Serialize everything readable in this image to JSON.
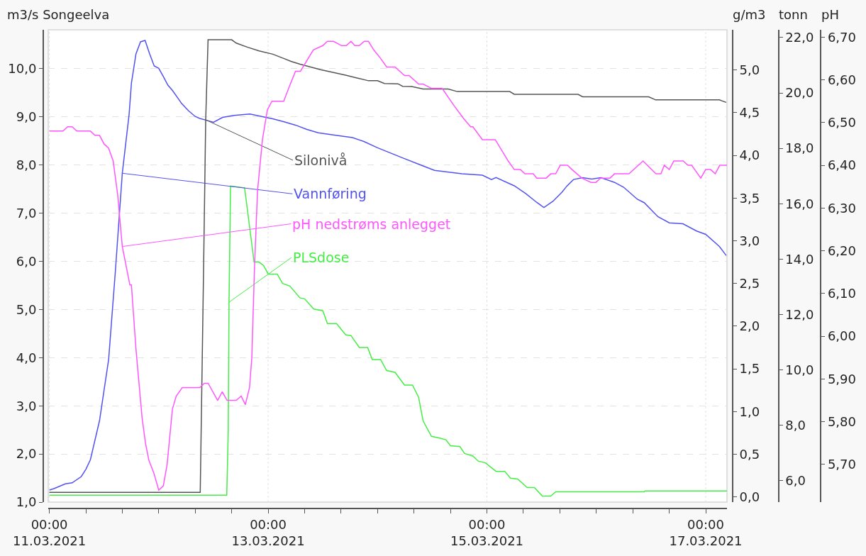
{
  "chart_data": [
    {
      "type": "line",
      "ylabel": "m3/s Songeelva",
      "y2label": "g/m3",
      "y3label": "tonn",
      "grid": true,
      "xlim": [
        "2021-03-10T23:45",
        "2021-03-17T04:40"
      ],
      "xticks": [
        {
          "value": "2021-03-11T00:00",
          "label": "00:00\n11.03.2021"
        },
        {
          "value": "2021-03-11T08:00",
          "label": null
        },
        {
          "value": "2021-03-11T16:00",
          "label": null
        },
        {
          "value": "2021-03-12T00:00",
          "label": null
        },
        {
          "value": "2021-03-12T08:00",
          "label": null
        },
        {
          "value": "2021-03-12T16:00",
          "label": null
        },
        {
          "value": "2021-03-13T00:00",
          "label": "00:00\n13.03.2021"
        },
        {
          "value": "2021-03-13T08:00",
          "label": null
        },
        {
          "value": "2021-03-13T16:00",
          "label": null
        },
        {
          "value": "2021-03-14T00:00",
          "label": null
        },
        {
          "value": "2021-03-14T08:00",
          "label": null
        },
        {
          "value": "2021-03-14T16:00",
          "label": null
        },
        {
          "value": "2021-03-15T00:00",
          "label": "00:00\n15.03.2021"
        },
        {
          "value": "2021-03-15T08:00",
          "label": null
        },
        {
          "value": "2021-03-15T16:00",
          "label": null
        },
        {
          "value": "2021-03-16T00:00",
          "label": null
        },
        {
          "value": "2021-03-16T08:00",
          "label": null
        },
        {
          "value": "2021-03-16T16:00",
          "label": null
        },
        {
          "value": "2021-03-17T00:00",
          "label": "00:00\n17.03.2021"
        }
      ],
      "ylim": [
        1.0,
        10.81
      ],
      "yticks": [
        {
          "value": 1,
          "label": "1,0"
        },
        {
          "value": 2,
          "label": "2,0"
        },
        {
          "value": 3,
          "label": "3,0"
        },
        {
          "value": 4,
          "label": "4,0"
        },
        {
          "value": 5,
          "label": "5,0"
        },
        {
          "value": 6,
          "label": "6,0"
        },
        {
          "value": 7,
          "label": "7,0"
        },
        {
          "value": 8,
          "label": "8,0"
        },
        {
          "value": 9,
          "label": "9,0"
        },
        {
          "value": 10,
          "label": "10,0"
        }
      ],
      "y2lim": [
        -0.06,
        5.47
      ],
      "y2ticks": [
        {
          "value": 0,
          "label": "0,0"
        },
        {
          "value": 0.5,
          "label": "0,5"
        },
        {
          "value": 1,
          "label": "1,0"
        },
        {
          "value": 1.5,
          "label": "1,5"
        },
        {
          "value": 2,
          "label": "2,0"
        },
        {
          "value": 2.5,
          "label": "2,5"
        },
        {
          "value": 3,
          "label": "3,0"
        },
        {
          "value": 3.5,
          "label": "3,5"
        },
        {
          "value": 4,
          "label": "4,0"
        },
        {
          "value": 4.5,
          "label": "4,5"
        },
        {
          "value": 5,
          "label": "5,0"
        }
      ],
      "y3lim": [
        5.23,
        22.28
      ],
      "y3ticks": [
        {
          "value": 6,
          "label": "6,0"
        },
        {
          "value": 8,
          "label": "8,0"
        },
        {
          "value": 10,
          "label": "10,0"
        },
        {
          "value": 12,
          "label": "12,0"
        },
        {
          "value": 14,
          "label": "14,0"
        },
        {
          "value": 16,
          "label": "16,0"
        },
        {
          "value": 18,
          "label": "18,0"
        },
        {
          "value": 20,
          "label": "20,0"
        },
        {
          "value": 22,
          "label": "22,0"
        }
      ],
      "series": [
        {
          "name": "Silonivå",
          "color": "#555555",
          "axis": "y3",
          "x": [
            "2021-03-11T00:00",
            "2021-03-12T09:06",
            "2021-03-12T09:50",
            "2021-03-12T10:18",
            "2021-03-12T10:49",
            "2021-03-12T16:00",
            "2021-03-12T17:00",
            "2021-03-12T19:30",
            "2021-03-12T22:00",
            "2021-03-13T01:00",
            "2021-03-13T03:30",
            "2021-03-13T05:00",
            "2021-03-13T07:00",
            "2021-03-13T11:30",
            "2021-03-13T14:00",
            "2021-03-13T17:00",
            "2021-03-13T19:30",
            "2021-03-13T22:00",
            "2021-03-14T00:00",
            "2021-03-14T01:30",
            "2021-03-14T04:30",
            "2021-03-14T05:30",
            "2021-03-14T07:30",
            "2021-03-14T10:00",
            "2021-03-14T15:30",
            "2021-03-14T17:30",
            "2021-03-15T05:00",
            "2021-03-15T06:00",
            "2021-03-15T20:00",
            "2021-03-15T21:00",
            "2021-03-16T11:30",
            "2021-03-16T13:00",
            "2021-03-17T03:00",
            "2021-03-17T04:30"
          ],
          "values": [
            5.58,
            5.58,
            13.63,
            19.03,
            21.92,
            21.92,
            21.8,
            21.65,
            21.52,
            21.4,
            21.24,
            21.14,
            21.04,
            20.84,
            20.75,
            20.64,
            20.54,
            20.44,
            20.44,
            20.34,
            20.33,
            20.24,
            20.23,
            20.14,
            20.14,
            20.05,
            20.05,
            19.95,
            19.95,
            19.86,
            19.86,
            19.75,
            19.75,
            19.66
          ]
        },
        {
          "name": "Vannføring",
          "color": "#5252f2",
          "x": [
            "2021-03-11T00:00",
            "2021-03-11T01:00",
            "2021-03-11T03:30",
            "2021-03-11T05:00",
            "2021-03-11T07:00",
            "2021-03-11T08:00",
            "2021-03-11T09:00",
            "2021-03-11T11:00",
            "2021-03-11T13:00",
            "2021-03-11T14:30",
            "2021-03-11T16:00",
            "2021-03-11T17:30",
            "2021-03-11T18:00",
            "2021-03-11T19:00",
            "2021-03-11T20:00",
            "2021-03-11T21:00",
            "2021-03-11T22:00",
            "2021-03-11T23:00",
            "2021-03-12T00:00",
            "2021-03-12T01:00",
            "2021-03-12T02:00",
            "2021-03-12T03:00",
            "2021-03-12T04:30",
            "2021-03-12T05:00",
            "2021-03-12T06:30",
            "2021-03-12T08:00",
            "2021-03-12T09:00",
            "2021-03-12T10:30",
            "2021-03-12T12:00",
            "2021-03-12T14:00",
            "2021-03-12T16:30",
            "2021-03-12T20:00",
            "2021-03-12T22:00",
            "2021-03-13T01:00",
            "2021-03-13T03:30",
            "2021-03-13T06:00",
            "2021-03-13T08:30",
            "2021-03-13T11:00",
            "2021-03-13T14:00",
            "2021-03-13T18:30",
            "2021-03-13T21:00",
            "2021-03-14T00:00",
            "2021-03-14T05:30",
            "2021-03-14T09:30",
            "2021-03-14T12:30",
            "2021-03-14T18:30",
            "2021-03-14T23:00",
            "2021-03-15T01:00",
            "2021-03-15T02:00",
            "2021-03-15T06:00",
            "2021-03-15T08:30",
            "2021-03-15T11:00",
            "2021-03-15T12:30",
            "2021-03-15T14:30",
            "2021-03-15T16:30",
            "2021-03-15T17:30",
            "2021-03-15T19:00",
            "2021-03-15T21:00",
            "2021-03-15T23:00",
            "2021-03-16T01:00",
            "2021-03-16T04:00",
            "2021-03-16T06:00",
            "2021-03-16T09:00",
            "2021-03-16T10:30",
            "2021-03-16T13:30",
            "2021-03-16T16:00",
            "2021-03-16T19:00",
            "2021-03-16T22:00",
            "2021-03-17T00:00",
            "2021-03-17T03:00",
            "2021-03-17T04:30"
          ],
          "values": [
            1.25,
            1.28,
            1.38,
            1.4,
            1.53,
            1.68,
            1.88,
            2.69,
            3.96,
            5.82,
            7.83,
            9.06,
            9.7,
            10.31,
            10.56,
            10.59,
            10.31,
            10.06,
            10.01,
            9.84,
            9.66,
            9.55,
            9.35,
            9.28,
            9.13,
            9.01,
            8.97,
            8.93,
            8.89,
            8.99,
            9.03,
            9.06,
            9.02,
            8.96,
            8.9,
            8.83,
            8.74,
            8.67,
            8.63,
            8.57,
            8.49,
            8.36,
            8.15,
            8.0,
            7.89,
            7.82,
            7.79,
            7.7,
            7.74,
            7.57,
            7.41,
            7.22,
            7.12,
            7.25,
            7.44,
            7.56,
            7.7,
            7.74,
            7.71,
            7.74,
            7.64,
            7.54,
            7.29,
            7.22,
            6.93,
            6.8,
            6.78,
            6.63,
            6.56,
            6.31,
            6.12
          ]
        },
        {
          "name": "PLSdose",
          "color": "#44ee44",
          "axis": "y2",
          "x": [
            "2021-03-11T00:00",
            "2021-03-12T14:55",
            "2021-03-12T15:15",
            "2021-03-12T15:25",
            "2021-03-12T15:45",
            "2021-03-12T18:50",
            "2021-03-12T20:55",
            "2021-03-12T22:00",
            "2021-03-12T23:00",
            "2021-03-13T00:00",
            "2021-03-13T02:00",
            "2021-03-13T03:10",
            "2021-03-13T04:45",
            "2021-03-13T07:00",
            "2021-03-13T08:00",
            "2021-03-13T10:00",
            "2021-03-13T12:00",
            "2021-03-13T13:00",
            "2021-03-13T15:00",
            "2021-03-13T17:00",
            "2021-03-13T18:10",
            "2021-03-13T20:00",
            "2021-03-13T21:50",
            "2021-03-13T22:50",
            "2021-03-14T00:40",
            "2021-03-14T02:00",
            "2021-03-14T03:50",
            "2021-03-14T05:55",
            "2021-03-14T07:40",
            "2021-03-14T09:00",
            "2021-03-14T10:00",
            "2021-03-14T11:50",
            "2021-03-14T13:40",
            "2021-03-14T15:00",
            "2021-03-14T16:00",
            "2021-03-14T18:05",
            "2021-03-14T19:05",
            "2021-03-14T20:55",
            "2021-03-14T22:05",
            "2021-03-14T23:40",
            "2021-03-15T02:00",
            "2021-03-15T03:55",
            "2021-03-15T05:10",
            "2021-03-15T06:45",
            "2021-03-15T08:50",
            "2021-03-15T10:25",
            "2021-03-15T12:10",
            "2021-03-15T14:00",
            "2021-03-15T15:05",
            "2021-03-16T10:30",
            "2021-03-16T10:40",
            "2021-03-17T04:40"
          ],
          "values": [
            0.02,
            0.02,
            0.78,
            2.28,
            3.64,
            3.62,
            2.75,
            2.75,
            2.71,
            2.61,
            2.61,
            2.5,
            2.47,
            2.33,
            2.32,
            2.2,
            2.18,
            2.03,
            2.03,
            1.9,
            1.89,
            1.75,
            1.75,
            1.61,
            1.61,
            1.48,
            1.46,
            1.31,
            1.31,
            1.17,
            0.89,
            0.71,
            0.69,
            0.67,
            0.6,
            0.59,
            0.51,
            0.48,
            0.42,
            0.4,
            0.3,
            0.3,
            0.22,
            0.21,
            0.11,
            0.11,
            0.01,
            0.01,
            0.06,
            0.06,
            0.07,
            0.07
          ]
        }
      ]
    },
    {
      "type": "line",
      "ylabel": "pH",
      "tick_labels": "y",
      "xlim": [
        "2021-03-10T23:45",
        "2021-03-17T04:40"
      ],
      "ylim": [
        5.612,
        6.717
      ],
      "yticks": [
        {
          "value": 5.7,
          "label": "5,70"
        },
        {
          "value": 5.8,
          "label": "5,80"
        },
        {
          "value": 5.9,
          "label": "5,90"
        },
        {
          "value": 6.0,
          "label": "6,00"
        },
        {
          "value": 6.1,
          "label": "6,10"
        },
        {
          "value": 6.2,
          "label": "6,20"
        },
        {
          "value": 6.3,
          "label": "6,30"
        },
        {
          "value": 6.4,
          "label": "6,40"
        },
        {
          "value": 6.5,
          "label": "6,50"
        },
        {
          "value": 6.6,
          "label": "6,60"
        },
        {
          "value": 6.7,
          "label": "6,70"
        }
      ],
      "series": [
        {
          "name": "pH nedstrøms anlegget",
          "color": "#ff55ff",
          "x": [
            "2021-03-11T00:00",
            "2021-03-11T03:00",
            "2021-03-11T04:00",
            "2021-03-11T05:00",
            "2021-03-11T06:00",
            "2021-03-11T09:00",
            "2021-03-11T10:00",
            "2021-03-11T11:00",
            "2021-03-11T12:00",
            "2021-03-11T13:00",
            "2021-03-11T14:00",
            "2021-03-11T15:00",
            "2021-03-11T16:00",
            "2021-03-11T17:40",
            "2021-03-11T18:00",
            "2021-03-11T19:00",
            "2021-03-11T20:20",
            "2021-03-11T21:05",
            "2021-03-11T21:50",
            "2021-03-11T22:55",
            "2021-03-12T00:00",
            "2021-03-12T01:00",
            "2021-03-12T01:50",
            "2021-03-12T03:00",
            "2021-03-12T03:50",
            "2021-03-12T05:10",
            "2021-03-12T09:00",
            "2021-03-12T10:00",
            "2021-03-12T10:50",
            "2021-03-12T12:55",
            "2021-03-12T13:55",
            "2021-03-12T15:00",
            "2021-03-12T17:00",
            "2021-03-12T18:05",
            "2021-03-12T19:00",
            "2021-03-12T19:55",
            "2021-03-12T20:25",
            "2021-03-12T21:00",
            "2021-03-12T21:40",
            "2021-03-12T22:45",
            "2021-03-12T23:50",
            "2021-03-13T00:50",
            "2021-03-13T02:10",
            "2021-03-13T02:55",
            "2021-03-13T03:25",
            "2021-03-13T04:30",
            "2021-03-13T06:00",
            "2021-03-13T07:05",
            "2021-03-13T09:55",
            "2021-03-13T12:00",
            "2021-03-13T13:00",
            "2021-03-13T14:20",
            "2021-03-13T16:05",
            "2021-03-13T17:10",
            "2021-03-13T18:10",
            "2021-03-13T19:00",
            "2021-03-13T20:00",
            "2021-03-13T21:05",
            "2021-03-13T22:00",
            "2021-03-13T23:10",
            "2021-03-14T00:40",
            "2021-03-14T02:00",
            "2021-03-14T03:50",
            "2021-03-14T05:55",
            "2021-03-14T06:55",
            "2021-03-14T09:00",
            "2021-03-14T10:00",
            "2021-03-14T11:50",
            "2021-03-14T13:10",
            "2021-03-14T14:10",
            "2021-03-14T16:45",
            "2021-03-14T18:50",
            "2021-03-14T20:25",
            "2021-03-14T20:55",
            "2021-03-14T23:00",
            "2021-03-15T01:50",
            "2021-03-15T04:40",
            "2021-03-15T06:00",
            "2021-03-15T07:20",
            "2021-03-15T08:20",
            "2021-03-15T10:10",
            "2021-03-15T10:55",
            "2021-03-15T13:00",
            "2021-03-15T14:00",
            "2021-03-15T15:05",
            "2021-03-15T16:05",
            "2021-03-15T17:40",
            "2021-03-15T18:40",
            "2021-03-15T20:50",
            "2021-03-15T22:50",
            "2021-03-15T23:55",
            "2021-03-16T00:55",
            "2021-03-16T03:00",
            "2021-03-16T04:00",
            "2021-03-16T07:10",
            "2021-03-16T10:15",
            "2021-03-16T13:05",
            "2021-03-16T14:10",
            "2021-03-16T14:55",
            "2021-03-16T16:00",
            "2021-03-16T17:00",
            "2021-03-16T19:05",
            "2021-03-16T20:05",
            "2021-03-16T20:55",
            "2021-03-16T22:55",
            "2021-03-17T00:00",
            "2021-03-17T01:05",
            "2021-03-17T02:05",
            "2021-03-17T03:05",
            "2021-03-17T03:55",
            "2021-03-17T04:40"
          ],
          "values": [
            6.48,
            6.48,
            6.49,
            6.49,
            6.48,
            6.48,
            6.47,
            6.47,
            6.45,
            6.44,
            6.41,
            6.33,
            6.21,
            6.12,
            6.12,
            5.97,
            5.81,
            5.75,
            5.71,
            5.68,
            5.64,
            5.65,
            5.7,
            5.83,
            5.86,
            5.88,
            5.88,
            5.89,
            5.89,
            5.85,
            5.87,
            5.85,
            5.85,
            5.86,
            5.84,
            5.88,
            5.95,
            6.16,
            6.34,
            6.46,
            6.53,
            6.55,
            6.55,
            6.55,
            6.55,
            6.58,
            6.62,
            6.62,
            6.67,
            6.68,
            6.69,
            6.69,
            6.68,
            6.68,
            6.69,
            6.68,
            6.68,
            6.69,
            6.69,
            6.67,
            6.65,
            6.63,
            6.63,
            6.61,
            6.61,
            6.59,
            6.59,
            6.58,
            6.58,
            6.58,
            6.54,
            6.51,
            6.49,
            6.49,
            6.46,
            6.46,
            6.41,
            6.39,
            6.39,
            6.38,
            6.38,
            6.37,
            6.37,
            6.38,
            6.38,
            6.4,
            6.4,
            6.39,
            6.37,
            6.36,
            6.36,
            6.37,
            6.37,
            6.38,
            6.38,
            6.41,
            6.38,
            6.38,
            6.4,
            6.39,
            6.41,
            6.41,
            6.4,
            6.4,
            6.37,
            6.39,
            6.39,
            6.38,
            6.4,
            6.4,
            6.4
          ]
        }
      ]
    }
  ]
}
